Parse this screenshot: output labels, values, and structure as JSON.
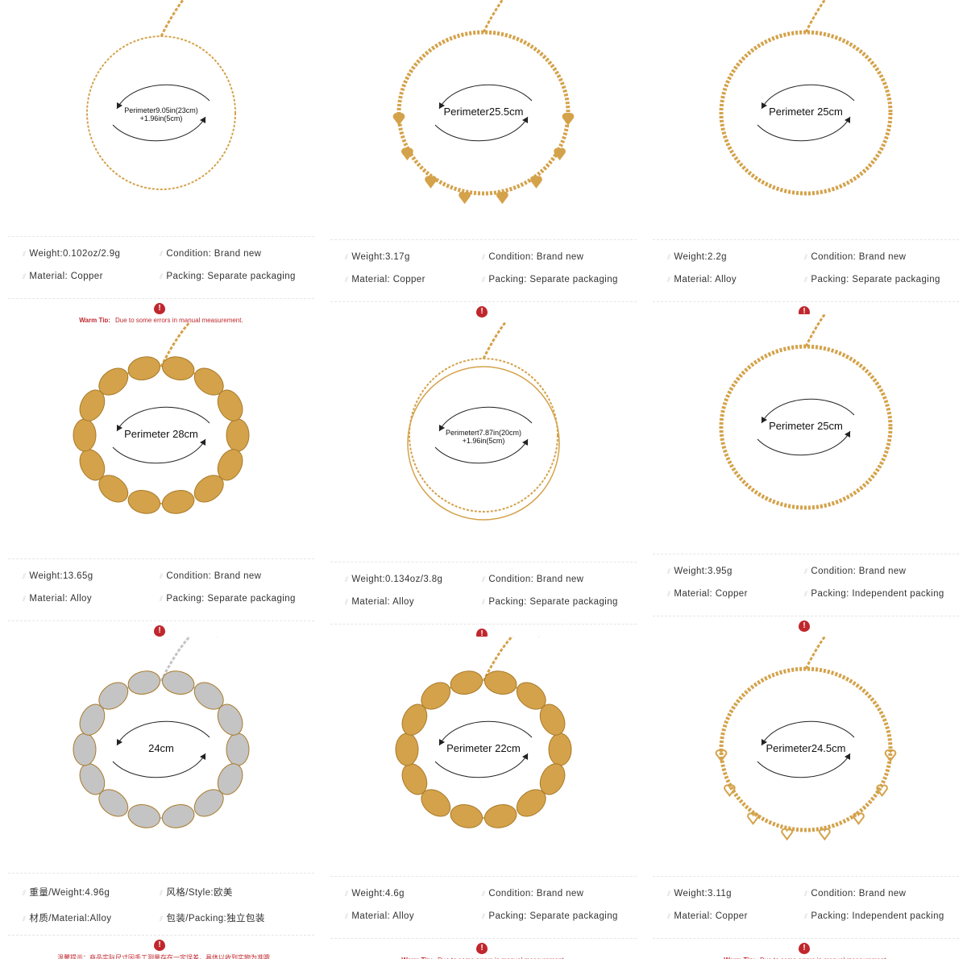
{
  "colors": {
    "gold": "#d4a24a",
    "silver": "#c4c4c4",
    "warning": "#c0272d"
  },
  "products": [
    {
      "metal": "gold",
      "perimeter": [
        "Perimeter9.05in(23cm)",
        "+1.96in(5cm)"
      ],
      "size": "small",
      "specs": [
        "Weight:0.102oz/2.9g",
        "Material: Copper",
        "Condition: Brand new",
        "Packing: Separate packaging"
      ],
      "tip_label": "Warm Tip:",
      "tip": "Due to some errors in manual measurement,"
    },
    {
      "metal": "gold",
      "perimeter": [
        "Perimeter25.5cm"
      ],
      "size": "mid",
      "specs": [
        "Weight:3.17g",
        "Material: Copper",
        "Condition: Brand new",
        "Packing: Separate packaging"
      ]
    },
    {
      "metal": "gold",
      "perimeter": [
        "Perimeter 25cm"
      ],
      "size": "mid",
      "specs": [
        "Weight:2.2g",
        "Material: Alloy",
        "Condition: Brand new",
        "Packing: Separate packaging"
      ]
    },
    {
      "metal": "gold",
      "perimeter": [
        "Perimeter 28cm"
      ],
      "size": "big",
      "specs": [
        "Weight:13.65g",
        "Material: Alloy",
        "Condition: Brand new",
        "Packing: Separate packaging"
      ]
    },
    {
      "metal": "gold",
      "perimeter": [
        "Perimetert7.87in(20cm)",
        "+1.96in(5cm)"
      ],
      "size": "small",
      "specs": [
        "Weight:0.134oz/3.8g",
        "Material: Alloy",
        "Condition: Brand new",
        "Packing: Separate packaging"
      ]
    },
    {
      "metal": "gold",
      "perimeter": [
        "Perimeter 25cm"
      ],
      "size": "mid",
      "specs": [
        "Weight:3.95g",
        "Material: Copper",
        "Condition: Brand new",
        "Packing: Independent packing"
      ]
    },
    {
      "metal": "silver",
      "perimeter": [
        "24cm"
      ],
      "size": "big",
      "specs": [
        "重量/Weight:4.96g",
        "材质/Material:Alloy",
        "风格/Style:欧美",
        "包装/Packing:独立包装"
      ],
      "tip_label": "",
      "tip": "温馨提示：商品实际尺寸因手工测量存在一定误差，具体以收到实物为准哦"
    },
    {
      "metal": "gold",
      "perimeter": [
        "Perimeter 22cm"
      ],
      "size": "big",
      "specs": [
        "Weight:4.6g",
        "Material: Alloy",
        "Condition: Brand new",
        "Packing: Separate packaging"
      ],
      "tip_label": "Warm Tip:",
      "tip": "Due to some errors in manual measurement,"
    },
    {
      "metal": "gold",
      "perimeter": [
        "Perimeter24.5cm"
      ],
      "size": "mid",
      "specs": [
        "Weight:3.11g",
        "Material: Copper",
        "Condition: Brand new",
        "Packing: Independent packing"
      ],
      "tip_label": "Warm Tip:",
      "tip": "Due to some errors in manual measurement,"
    }
  ]
}
